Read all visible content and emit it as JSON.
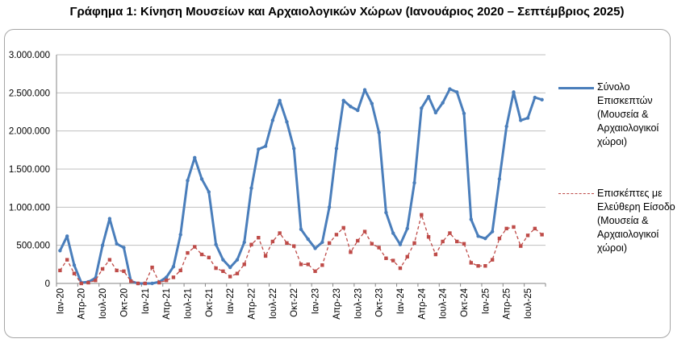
{
  "title": "Γράφημα 1: Κίνηση Μουσείων και Αρχαιολογικών Χώρων (Ιανουάριος 2020 – Σεπτέμβριος 2025)",
  "chart_data": {
    "type": "line",
    "title": "Γράφημα 1: Κίνηση Μουσείων και Αρχαιολογικών Χώρων (Ιανουάριος 2020 – Σεπτέμβριος 2025)",
    "xlabel": "",
    "ylabel": "",
    "ylim": [
      0,
      3000000
    ],
    "y_ticks": [
      0,
      500000,
      1000000,
      1500000,
      2000000,
      2500000,
      3000000
    ],
    "y_tick_labels": [
      "0",
      "500.000",
      "1.000.000",
      "1.500.000",
      "2.000.000",
      "2.500.000",
      "3.000.000"
    ],
    "grid": "horizontal",
    "legend_position": "right",
    "x_tick_labels": [
      "Ιαν-20",
      "Απρ-20",
      "Ιουλ-20",
      "Οκτ-20",
      "Ιαν-21",
      "Απρ-21",
      "Ιουλ-21",
      "Οκτ-21",
      "Ιαν-22",
      "Απρ-22",
      "Ιουλ-22",
      "Οκτ-22",
      "Ιαν-23",
      "Απρ-23",
      "Ιουλ-23",
      "Οκτ-23",
      "Ιαν-24",
      "Απρ-24",
      "Ιουλ-24",
      "Οκτ-24",
      "Ιαν-25",
      "Απρ-25",
      "Ιουλ-25"
    ],
    "x": [
      "Ιαν-20",
      "Φεβ-20",
      "Μαρ-20",
      "Απρ-20",
      "Μαϊ-20",
      "Ιουν-20",
      "Ιουλ-20",
      "Αυγ-20",
      "Σεπ-20",
      "Οκτ-20",
      "Νοε-20",
      "Δεκ-20",
      "Ιαν-21",
      "Φεβ-21",
      "Μαρ-21",
      "Απρ-21",
      "Μαϊ-21",
      "Ιουν-21",
      "Ιουλ-21",
      "Αυγ-21",
      "Σεπ-21",
      "Οκτ-21",
      "Νοε-21",
      "Δεκ-21",
      "Ιαν-22",
      "Φεβ-22",
      "Μαρ-22",
      "Απρ-22",
      "Μαϊ-22",
      "Ιουν-22",
      "Ιουλ-22",
      "Αυγ-22",
      "Σεπ-22",
      "Οκτ-22",
      "Νοε-22",
      "Δεκ-22",
      "Ιαν-23",
      "Φεβ-23",
      "Μαρ-23",
      "Απρ-23",
      "Μαϊ-23",
      "Ιουν-23",
      "Ιουλ-23",
      "Αυγ-23",
      "Σεπ-23",
      "Οκτ-23",
      "Νοε-23",
      "Δεκ-23",
      "Ιαν-24",
      "Φεβ-24",
      "Μαρ-24",
      "Απρ-24",
      "Μαϊ-24",
      "Ιουν-24",
      "Ιουλ-24",
      "Αυγ-24",
      "Σεπ-24",
      "Οκτ-24",
      "Νοε-24",
      "Δεκ-24",
      "Ιαν-25",
      "Φεβ-25",
      "Μαρ-25",
      "Απρ-25",
      "Μαϊ-25",
      "Ιουν-25",
      "Ιουλ-25",
      "Αυγ-25",
      "Σεπ-25"
    ],
    "series": [
      {
        "name": "Σύνολο Επισκεπτών (Μουσεία & Αρχαιολογικοί χώροι)",
        "color": "#4a7ebb",
        "style": "solid",
        "values": [
          430000,
          620000,
          240000,
          10000,
          20000,
          70000,
          500000,
          850000,
          520000,
          470000,
          30000,
          0,
          0,
          0,
          20000,
          80000,
          220000,
          640000,
          1350000,
          1650000,
          1370000,
          1200000,
          510000,
          310000,
          210000,
          310000,
          540000,
          1250000,
          1760000,
          1800000,
          2140000,
          2400000,
          2120000,
          1770000,
          710000,
          580000,
          460000,
          540000,
          1000000,
          1770000,
          2400000,
          2320000,
          2270000,
          2540000,
          2360000,
          1980000,
          930000,
          660000,
          510000,
          720000,
          1320000,
          2300000,
          2450000,
          2240000,
          2370000,
          2550000,
          2510000,
          2230000,
          840000,
          620000,
          590000,
          680000,
          1370000,
          2060000,
          2510000,
          2140000,
          2170000,
          2440000,
          2410000
        ]
      },
      {
        "name": "Επισκέπτες με Ελεύθερη Είσοδο (Μουσεία & Αρχαιολογικοί χώροι)",
        "color": "#be4b48",
        "style": "dashed",
        "values": [
          170000,
          310000,
          130000,
          0,
          10000,
          40000,
          190000,
          310000,
          170000,
          160000,
          30000,
          0,
          0,
          210000,
          10000,
          40000,
          80000,
          170000,
          400000,
          480000,
          380000,
          340000,
          200000,
          160000,
          90000,
          130000,
          250000,
          510000,
          600000,
          360000,
          550000,
          660000,
          530000,
          490000,
          250000,
          250000,
          160000,
          240000,
          530000,
          640000,
          730000,
          410000,
          560000,
          680000,
          520000,
          470000,
          330000,
          300000,
          200000,
          350000,
          530000,
          900000,
          610000,
          380000,
          550000,
          660000,
          550000,
          520000,
          270000,
          230000,
          230000,
          310000,
          590000,
          720000,
          740000,
          490000,
          630000,
          720000,
          640000
        ]
      }
    ]
  },
  "legend": {
    "entries": [
      "Σύνολο Επισκεπτών (Μουσεία & Αρχαιολογικοί χώροι)",
      "Επισκέπτες με Ελεύθερη Είσοδο (Μουσεία & Αρχαιολογικοί χώροι)"
    ]
  }
}
